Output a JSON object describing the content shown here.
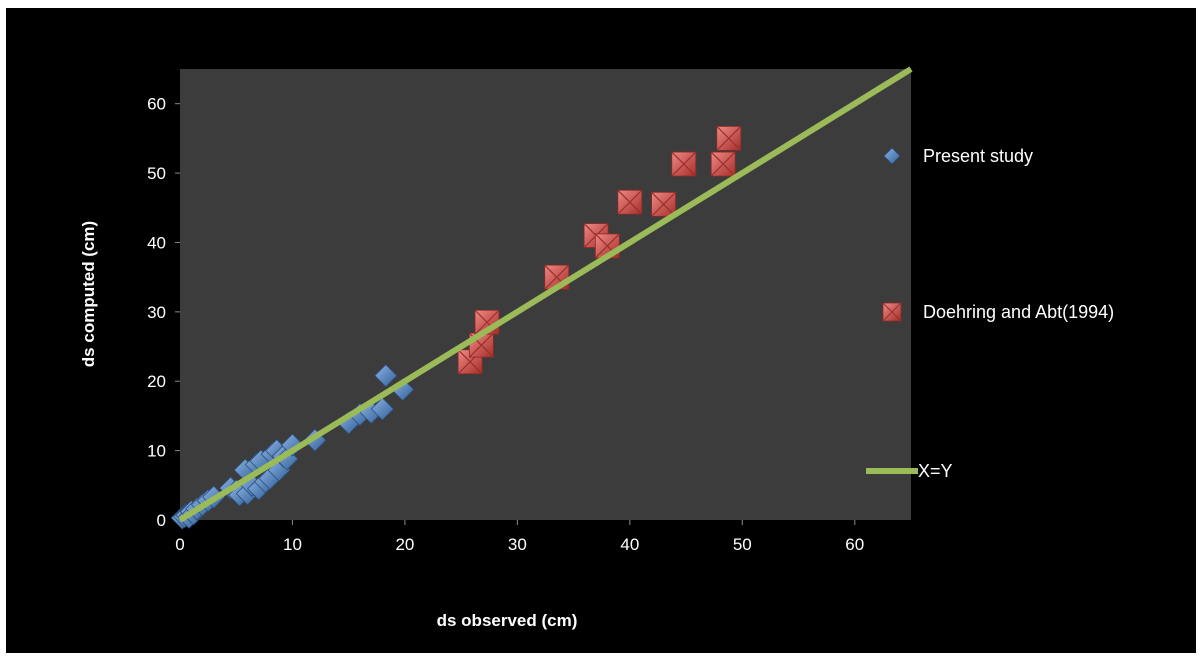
{
  "chart_data": {
    "type": "scatter",
    "title": "",
    "xlabel": "ds observed (cm)",
    "ylabel": "ds computed (cm)",
    "xlim": [
      0,
      65
    ],
    "ylim": [
      0,
      65
    ],
    "xticks": [
      0,
      10,
      20,
      30,
      40,
      50,
      60
    ],
    "yticks": [
      0,
      10,
      20,
      30,
      40,
      50,
      60
    ],
    "grid": false,
    "legend_position": "right",
    "plot_background": "#3c3c3c",
    "series": [
      {
        "name": "Present study",
        "type": "scatter",
        "marker": "diamond",
        "color": "#4f81bd",
        "points": [
          [
            0.2,
            0.3
          ],
          [
            0.4,
            0.5
          ],
          [
            0.6,
            0.7
          ],
          [
            0.8,
            0.4
          ],
          [
            1.0,
            1.2
          ],
          [
            1.2,
            0.9
          ],
          [
            1.5,
            1.6
          ],
          [
            2.0,
            2.2
          ],
          [
            2.5,
            2.8
          ],
          [
            3.0,
            3.3
          ],
          [
            4.5,
            4.6
          ],
          [
            5.0,
            4.2
          ],
          [
            5.3,
            3.6
          ],
          [
            5.8,
            7.2
          ],
          [
            6.0,
            3.8
          ],
          [
            6.4,
            5.0
          ],
          [
            6.8,
            8.0
          ],
          [
            7.0,
            4.5
          ],
          [
            7.2,
            8.5
          ],
          [
            7.6,
            5.5
          ],
          [
            8.0,
            6.0
          ],
          [
            8.2,
            9.5
          ],
          [
            8.6,
            10.0
          ],
          [
            8.8,
            7.2
          ],
          [
            9.2,
            9.2
          ],
          [
            9.5,
            8.8
          ],
          [
            10.0,
            10.8
          ],
          [
            12.0,
            11.5
          ],
          [
            15.0,
            14.0
          ],
          [
            16.0,
            15.2
          ],
          [
            17.0,
            15.5
          ],
          [
            18.0,
            16.0
          ],
          [
            18.3,
            20.8
          ],
          [
            19.8,
            18.8
          ]
        ]
      },
      {
        "name": "Doehring and Abt(1994)",
        "type": "scatter",
        "marker": "square",
        "color": "#c0504d",
        "points": [
          [
            25.8,
            22.8
          ],
          [
            26.8,
            25.2
          ],
          [
            27.3,
            28.5
          ],
          [
            33.5,
            35.0
          ],
          [
            37.0,
            41.0
          ],
          [
            38.0,
            39.5
          ],
          [
            40.0,
            45.8
          ],
          [
            43.0,
            45.5
          ],
          [
            44.8,
            51.3
          ],
          [
            48.3,
            51.3
          ],
          [
            48.8,
            55.0
          ]
        ]
      },
      {
        "name": "X=Y",
        "type": "line",
        "color": "#9bbb59",
        "points": [
          [
            0,
            0
          ],
          [
            65,
            65
          ]
        ]
      }
    ]
  }
}
